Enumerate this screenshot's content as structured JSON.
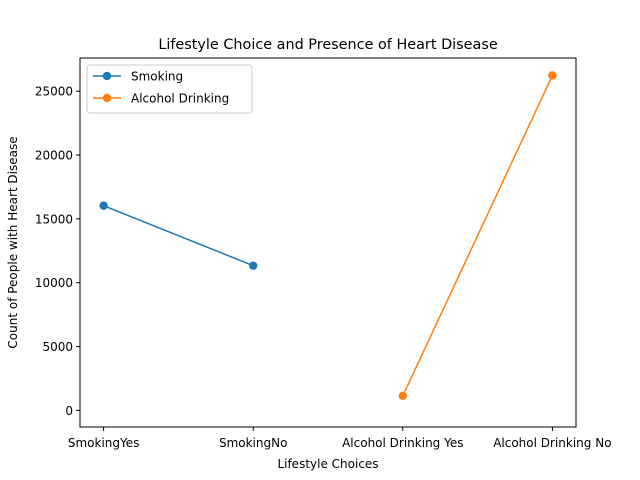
{
  "chart_data": {
    "type": "line",
    "title": "Lifestyle Choice and Presence of Heart Disease",
    "xlabel": "Lifestyle Choices",
    "ylabel": "Count of People with Heart Disease",
    "categories": [
      "SmokingYes",
      "SmokingNo",
      "Alcohol Drinking Yes",
      "Alcohol Drinking No"
    ],
    "ylim": [
      -1300,
      27600
    ],
    "yticks": [
      0,
      5000,
      10000,
      15000,
      20000,
      25000
    ],
    "grid": false,
    "legend_position": "top-left",
    "series": [
      {
        "name": "Smoking",
        "color": "#1f77b4",
        "points": [
          {
            "category": "SmokingYes",
            "value": 16037
          },
          {
            "category": "SmokingNo",
            "value": 11336
          }
        ]
      },
      {
        "name": "Alcohol Drinking",
        "color": "#ff7f0e",
        "points": [
          {
            "category": "Alcohol Drinking Yes",
            "value": 1141
          },
          {
            "category": "Alcohol Drinking No",
            "value": 26232
          }
        ]
      }
    ]
  }
}
